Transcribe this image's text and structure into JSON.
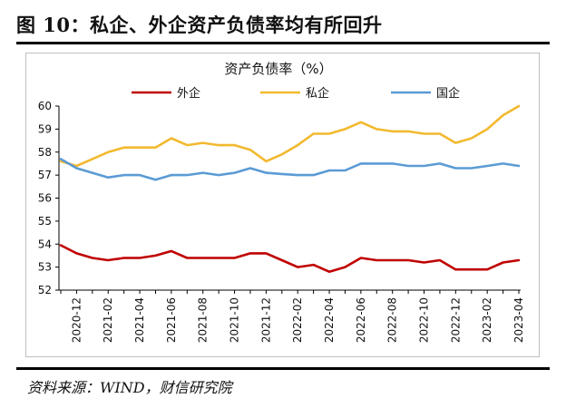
{
  "figure": {
    "title": "图 10：私企、外企资产负债率均有所回升",
    "source": "资料来源：WIND，财信研究院"
  },
  "chart_data": {
    "type": "line",
    "title": "资产负债率（%）",
    "xlabel": "",
    "ylabel": "",
    "ylim": [
      52,
      60
    ],
    "yticks": [
      52,
      53,
      54,
      55,
      56,
      57,
      58,
      59,
      60
    ],
    "grid": false,
    "legend": "top",
    "x_tick_labels": [
      "2020-12",
      "2021-02",
      "2021-04",
      "2021-06",
      "2021-08",
      "2021-10",
      "2021-12",
      "2022-02",
      "2022-04",
      "2022-06",
      "2022-08",
      "2022-10",
      "2022-12",
      "2023-02",
      "2023-04"
    ],
    "x": [
      "2020-11",
      "2020-12",
      "2021-01",
      "2021-02",
      "2021-03",
      "2021-04",
      "2021-05",
      "2021-06",
      "2021-07",
      "2021-08",
      "2021-09",
      "2021-10",
      "2021-11",
      "2021-12",
      "2022-01",
      "2022-02",
      "2022-03",
      "2022-04",
      "2022-05",
      "2022-06",
      "2022-07",
      "2022-08",
      "2022-09",
      "2022-10",
      "2022-11",
      "2022-12",
      "2023-01",
      "2023-02",
      "2023-03",
      "2023-04"
    ],
    "series": [
      {
        "name": "外企",
        "color": "#c00000",
        "values": [
          53.95,
          53.6,
          53.4,
          53.3,
          53.4,
          53.4,
          53.5,
          53.7,
          53.4,
          53.4,
          53.4,
          53.4,
          53.6,
          53.6,
          53.3,
          53.0,
          53.1,
          52.8,
          53.0,
          53.4,
          53.3,
          53.3,
          53.3,
          53.2,
          53.3,
          52.9,
          52.9,
          52.9,
          53.2,
          53.3
        ]
      },
      {
        "name": "私企",
        "color": "#f2b92f",
        "values": [
          57.6,
          57.4,
          57.7,
          58.0,
          58.2,
          58.2,
          58.2,
          58.6,
          58.3,
          58.4,
          58.3,
          58.3,
          58.1,
          57.6,
          57.9,
          58.3,
          58.8,
          58.8,
          59.0,
          59.3,
          59.0,
          58.9,
          58.9,
          58.8,
          58.8,
          58.4,
          58.6,
          59.0,
          59.6,
          60.0
        ]
      },
      {
        "name": "国企",
        "color": "#5b9bd5",
        "values": [
          57.7,
          57.3,
          57.1,
          56.9,
          57.0,
          57.0,
          56.8,
          57.0,
          57.0,
          57.1,
          57.0,
          57.1,
          57.3,
          57.1,
          57.05,
          57.0,
          57.0,
          57.2,
          57.2,
          57.5,
          57.5,
          57.5,
          57.4,
          57.4,
          57.5,
          57.3,
          57.3,
          57.4,
          57.5,
          57.4
        ]
      }
    ]
  },
  "colors": {
    "axis": "#000000",
    "frame": "#bfbfbf"
  }
}
